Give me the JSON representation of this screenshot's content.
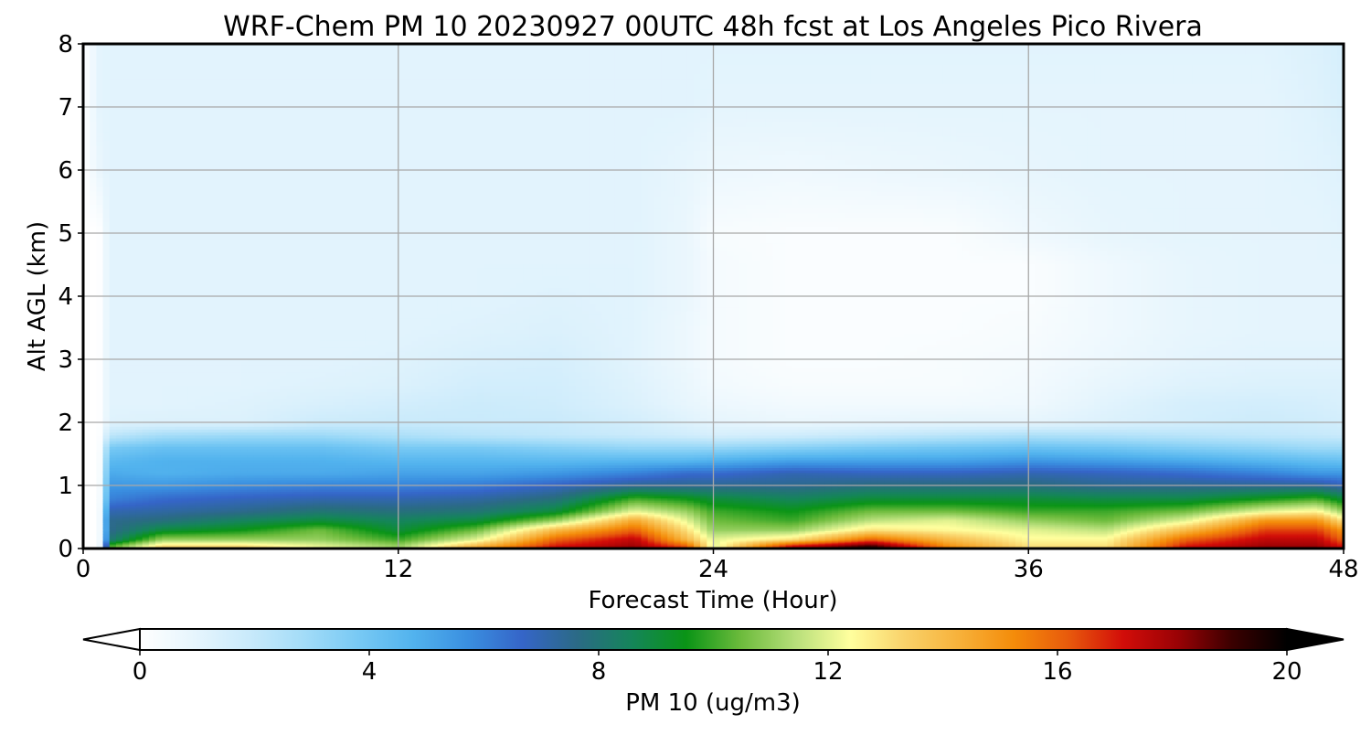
{
  "chart_data": {
    "type": "heatmap",
    "title": "WRF-Chem PM 10  20230927 00UTC 48h fcst at Los Angeles Pico Rivera",
    "xlabel": "Forecast Time (Hour)",
    "ylabel": "Alt AGL (km)",
    "xlim": [
      0,
      48
    ],
    "ylim": [
      0,
      8
    ],
    "x_ticks": [
      0,
      12,
      24,
      36,
      48
    ],
    "y_ticks": [
      0,
      1,
      2,
      3,
      4,
      5,
      6,
      7,
      8
    ],
    "grid": true,
    "colorbar": {
      "label": "PM 10  (ug/m3)",
      "range": [
        0,
        20
      ],
      "ticks": [
        0,
        4,
        8,
        12,
        16,
        20
      ],
      "extend": "both",
      "levels": [
        0,
        1,
        2,
        3,
        4,
        5,
        6,
        7,
        8,
        9,
        10,
        11,
        12,
        13,
        14,
        15,
        16,
        17,
        18,
        19,
        20
      ],
      "colors": [
        "#ffffff",
        "#e6f5fd",
        "#c9eafb",
        "#a3dcf8",
        "#78c9f4",
        "#52b3ee",
        "#3a8fe0",
        "#3565c8",
        "#2b6a86",
        "#15855a",
        "#0a9416",
        "#6cbb3c",
        "#b7df7a",
        "#ffff9e",
        "#f9d26a",
        "#f7b13a",
        "#f48c0a",
        "#e85a0c",
        "#d20d09",
        "#9a0205",
        "#3a0000",
        "#000000"
      ]
    },
    "x_hours": [
      0,
      0.6,
      1,
      3,
      6,
      9,
      12,
      15,
      18,
      21,
      23,
      24,
      27,
      30,
      33,
      36,
      39,
      42,
      45,
      47,
      48
    ],
    "y_km": [
      0,
      0.05,
      0.15,
      0.3,
      0.45,
      0.6,
      0.8,
      1.0,
      1.2,
      1.4,
      1.6,
      1.8,
      2.0,
      2.3,
      2.6,
      3.0,
      3.5,
      4.0,
      4.5,
      5.0,
      6.0,
      7.0,
      8.0
    ],
    "values": [
      [
        0,
        0,
        10,
        14,
        14,
        12,
        11,
        15,
        18,
        19,
        17,
        12,
        18,
        20,
        16,
        13,
        14,
        18,
        19,
        19,
        18
      ],
      [
        0,
        0,
        10,
        13,
        13,
        12,
        11,
        14,
        17,
        18,
        16,
        12,
        17,
        19,
        15,
        13,
        13,
        17,
        18,
        18,
        17
      ],
      [
        0,
        0,
        8,
        11,
        11,
        11,
        10,
        12,
        16,
        17.5,
        14,
        12,
        13,
        16,
        14,
        12.5,
        12.5,
        16,
        17.5,
        17.5,
        16
      ],
      [
        0,
        0,
        7.5,
        9,
        9.5,
        10.5,
        9,
        10.5,
        14,
        16,
        13,
        11,
        11,
        13,
        12.5,
        12,
        11.5,
        14,
        16.5,
        16.5,
        15
      ],
      [
        0,
        0,
        7.5,
        7.8,
        8.5,
        9,
        8.5,
        9,
        11,
        14.5,
        12,
        10.5,
        10,
        11.5,
        12,
        11,
        10.5,
        12,
        15,
        15,
        13
      ],
      [
        0,
        0,
        7,
        7.2,
        7.5,
        8,
        7.8,
        8,
        9,
        12,
        11,
        10,
        9.5,
        10.5,
        10.5,
        10,
        10,
        10.5,
        12,
        12.5,
        11
      ],
      [
        0,
        0,
        6,
        6.5,
        6.8,
        7,
        7,
        7.2,
        7.8,
        10,
        9.5,
        9,
        8.5,
        9,
        9,
        9,
        8.8,
        8.8,
        9.5,
        10,
        9
      ],
      [
        0,
        0,
        5.5,
        5.5,
        5.8,
        6,
        6,
        6.2,
        6.8,
        7.5,
        7.5,
        7.5,
        7.5,
        7.8,
        7.8,
        7.8,
        7.5,
        7.5,
        7.5,
        7.5,
        7
      ],
      [
        0,
        0,
        5,
        4.8,
        5,
        5,
        5.2,
        5.2,
        5.5,
        6,
        6.5,
        6.5,
        7,
        6.8,
        6.8,
        7,
        6.8,
        6.5,
        6,
        5.5,
        5.5
      ],
      [
        0,
        0,
        4.5,
        4.8,
        4.8,
        4.8,
        4.6,
        4.6,
        4.5,
        4.6,
        4.6,
        4.8,
        5.2,
        5.2,
        5.2,
        5.5,
        5.3,
        5,
        4.6,
        4.3,
        4.2
      ],
      [
        0,
        0,
        3.8,
        4.2,
        4.2,
        4.2,
        3.8,
        3.8,
        3.5,
        3.2,
        3.2,
        3.2,
        3.5,
        3.8,
        4,
        4.2,
        4,
        3.6,
        3.3,
        3,
        3
      ],
      [
        0,
        0,
        2.2,
        2.8,
        3,
        3,
        2.6,
        2.3,
        2.1,
        1.9,
        1.7,
        1.5,
        1.7,
        2,
        2.3,
        2.6,
        2.5,
        2.3,
        2.1,
        2,
        1.9
      ],
      [
        0,
        0,
        1.2,
        1.3,
        1.3,
        1.8,
        1.9,
        1.9,
        1.9,
        1.6,
        1.2,
        1,
        0.8,
        0.9,
        1,
        1,
        1.3,
        1.6,
        1.8,
        1.7,
        1.6
      ],
      [
        0,
        0,
        1.1,
        1.1,
        1.2,
        1.4,
        1.6,
        1.8,
        1.7,
        1.3,
        0.9,
        0.7,
        0.5,
        0.5,
        0.5,
        0.6,
        1.1,
        1.5,
        1.6,
        1.5,
        1.4
      ],
      [
        0,
        0,
        1.1,
        1.1,
        1.1,
        1.2,
        1.3,
        1.6,
        1.6,
        1.2,
        0.8,
        0.5,
        0.3,
        0.3,
        0.3,
        0.5,
        0.9,
        1.2,
        1.3,
        1.3,
        1.3
      ],
      [
        0,
        0,
        1.1,
        1.1,
        1.1,
        1.1,
        1.2,
        1.4,
        1.5,
        1.1,
        0.7,
        0.4,
        0.2,
        0.2,
        0.3,
        0.4,
        0.7,
        1,
        1.1,
        1.1,
        1.1
      ],
      [
        0,
        0,
        1.1,
        1.1,
        1.1,
        1.1,
        1.1,
        1.2,
        1.3,
        1.1,
        0.7,
        0.4,
        0.2,
        0.2,
        0.2,
        0.3,
        0.6,
        0.9,
        1,
        1,
        1
      ],
      [
        0,
        0,
        1.1,
        1.1,
        1.1,
        1.1,
        1.1,
        1.1,
        1.2,
        1.1,
        0.8,
        0.4,
        0.2,
        0.2,
        0.2,
        0.2,
        0.6,
        0.9,
        1,
        1,
        1
      ],
      [
        0,
        0,
        1.1,
        1.1,
        1.1,
        1.1,
        1.1,
        1.1,
        1.1,
        1.1,
        0.8,
        0.4,
        0.2,
        0.2,
        0.2,
        0.2,
        0.6,
        0.9,
        1,
        1,
        1
      ],
      [
        0,
        0,
        1.1,
        1.1,
        1.1,
        1.1,
        1.1,
        1.1,
        1.1,
        1.1,
        0.8,
        0.3,
        0.2,
        0.2,
        0.2,
        0.6,
        0.9,
        1,
        1,
        1,
        1.1
      ],
      [
        0,
        0.8,
        1.1,
        1.1,
        1.1,
        1.1,
        1.1,
        1.1,
        1.1,
        1.1,
        0.9,
        0.7,
        0.6,
        0.7,
        0.8,
        0.9,
        1,
        1,
        1,
        1.1,
        1.2
      ],
      [
        0,
        1,
        1.1,
        1.1,
        1.1,
        1.1,
        1.1,
        1.1,
        1.1,
        1.1,
        1.1,
        1,
        1,
        1,
        1,
        1,
        1,
        1,
        1,
        1.2,
        1.4
      ],
      [
        0,
        1,
        1.1,
        1.1,
        1.1,
        1.1,
        1.1,
        1.1,
        1.1,
        1.1,
        1.1,
        1.1,
        1.1,
        1.1,
        1.1,
        1.1,
        1.1,
        1.1,
        1.1,
        1.3,
        1.5
      ]
    ]
  }
}
